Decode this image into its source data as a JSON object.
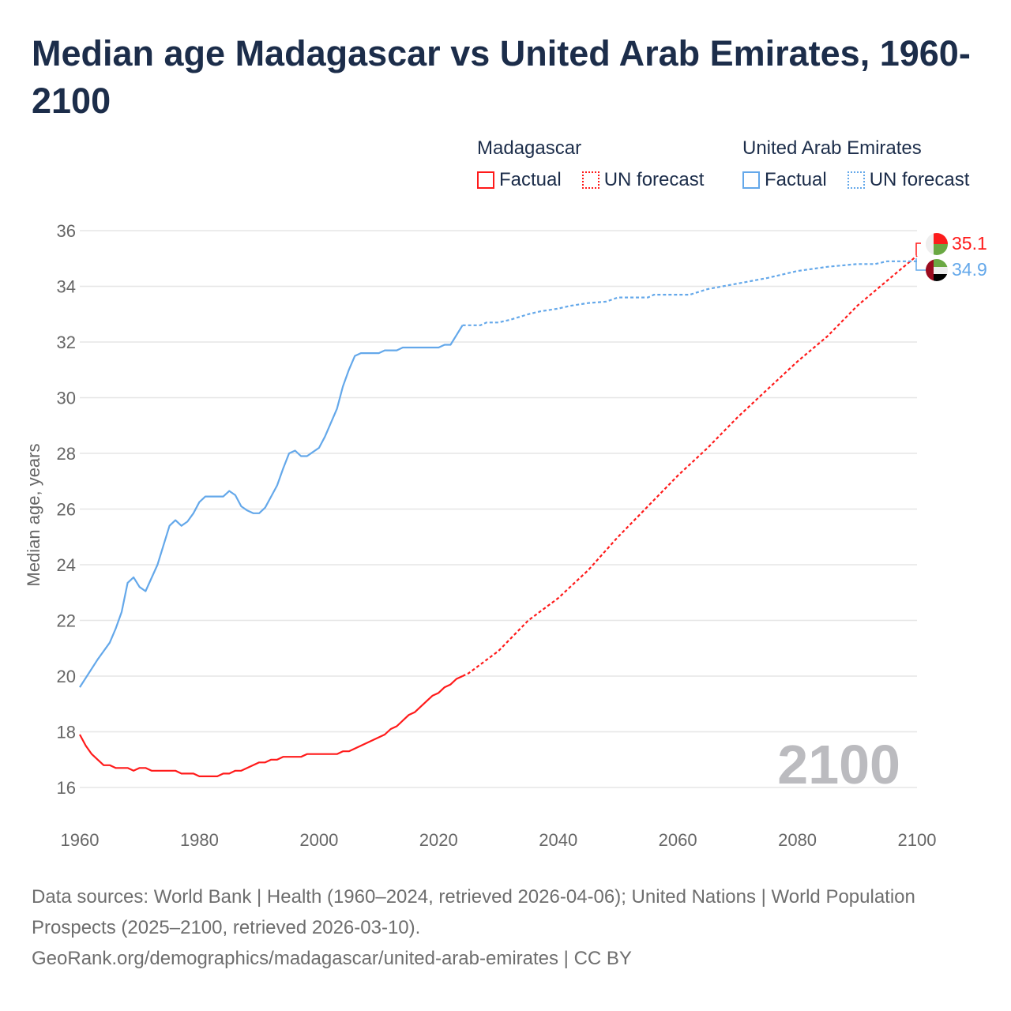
{
  "title": "Median age Madagascar vs United Arab Emirates, 1960-2100",
  "legend": [
    {
      "country": "Madagascar",
      "color": "#ff1a1a",
      "factual_label": "Factual",
      "forecast_label": "UN forecast"
    },
    {
      "country": "United Arab Emirates",
      "color": "#64a8ea",
      "factual_label": "Factual",
      "forecast_label": "UN forecast"
    }
  ],
  "year_watermark": "2100",
  "end_labels": {
    "madagascar": "35.1",
    "uae": "34.9"
  },
  "footer": {
    "line1": "Data sources: World Bank | Health (1960–2024, retrieved 2026-04-06); United Nations | World Population Prospects (2025–2100, retrieved 2026-03-10).",
    "line2": "GeoRank.org/demographics/madagascar/united-arab-emirates | CC BY"
  },
  "chart_data": {
    "type": "line",
    "title": "Median age Madagascar vs United Arab Emirates, 1960-2100",
    "xlabel": "",
    "ylabel": "Median age, years",
    "xlim": [
      1960,
      2100
    ],
    "ylim": [
      15,
      36.5
    ],
    "xticks": [
      1960,
      1980,
      2000,
      2020,
      2040,
      2060,
      2080,
      2100
    ],
    "yticks": [
      16,
      18,
      20,
      22,
      24,
      26,
      28,
      30,
      32,
      34,
      36
    ],
    "grid": true,
    "forecast_start": 2024,
    "series": [
      {
        "name": "Madagascar",
        "color": "#ff1a1a",
        "x": [
          1960,
          1961,
          1962,
          1963,
          1964,
          1965,
          1966,
          1968,
          1969,
          1970,
          1971,
          1972,
          1976,
          1977,
          1979,
          1980,
          1983,
          1984,
          1985,
          1986,
          1987,
          1988,
          1990,
          1991,
          1992,
          1993,
          1994,
          1997,
          1998,
          2003,
          2004,
          2005,
          2010,
          2011,
          2012,
          2013,
          2015,
          2016,
          2018,
          2019,
          2020,
          2021,
          2022,
          2023,
          2024,
          2025,
          2030,
          2035,
          2040,
          2045,
          2050,
          2055,
          2060,
          2065,
          2070,
          2075,
          2080,
          2085,
          2090,
          2095,
          2100
        ],
        "y": [
          17.9,
          17.5,
          17.2,
          17.0,
          16.8,
          16.8,
          16.7,
          16.7,
          16.6,
          16.7,
          16.7,
          16.6,
          16.6,
          16.5,
          16.5,
          16.4,
          16.4,
          16.5,
          16.5,
          16.6,
          16.6,
          16.7,
          16.9,
          16.9,
          17.0,
          17.0,
          17.1,
          17.1,
          17.2,
          17.2,
          17.3,
          17.3,
          17.8,
          17.9,
          18.1,
          18.2,
          18.6,
          18.7,
          19.1,
          19.3,
          19.4,
          19.6,
          19.7,
          19.9,
          20.0,
          20.1,
          20.9,
          22.0,
          22.8,
          23.8,
          25.0,
          26.1,
          27.2,
          28.2,
          29.3,
          30.3,
          31.3,
          32.2,
          33.3,
          34.2,
          35.1
        ]
      },
      {
        "name": "United Arab Emirates",
        "color": "#64a8ea",
        "x": [
          1960,
          1963,
          1965,
          1966,
          1967,
          1968,
          1969,
          1970,
          1971,
          1973,
          1975,
          1976,
          1977,
          1978,
          1979,
          1980,
          1981,
          1984,
          1985,
          1986,
          1987,
          1988,
          1989,
          1990,
          1991,
          1992,
          1993,
          1994,
          1995,
          1996,
          1997,
          1998,
          1999,
          2000,
          2001,
          2002,
          2003,
          2004,
          2005,
          2006,
          2007,
          2010,
          2011,
          2013,
          2014,
          2020,
          2021,
          2022,
          2023,
          2024,
          2027,
          2028,
          2030,
          2032,
          2035,
          2037,
          2040,
          2042,
          2045,
          2048,
          2050,
          2055,
          2056,
          2062,
          2065,
          2070,
          2075,
          2080,
          2085,
          2090,
          2093,
          2095,
          2100
        ],
        "y": [
          19.6,
          20.6,
          21.2,
          21.7,
          22.3,
          23.35,
          23.55,
          23.2,
          23.05,
          24.0,
          25.4,
          25.6,
          25.4,
          25.55,
          25.85,
          26.25,
          26.45,
          26.45,
          26.65,
          26.5,
          26.1,
          25.95,
          25.85,
          25.85,
          26.05,
          26.45,
          26.85,
          27.45,
          28.0,
          28.1,
          27.9,
          27.9,
          28.05,
          28.2,
          28.6,
          29.1,
          29.6,
          30.4,
          31.0,
          31.5,
          31.6,
          31.6,
          31.7,
          31.7,
          31.8,
          31.8,
          31.9,
          31.9,
          32.25,
          32.6,
          32.6,
          32.7,
          32.7,
          32.8,
          33.0,
          33.1,
          33.2,
          33.3,
          33.4,
          33.45,
          33.6,
          33.6,
          33.7,
          33.7,
          33.9,
          34.1,
          34.3,
          34.55,
          34.7,
          34.8,
          34.8,
          34.9,
          34.9
        ]
      }
    ]
  }
}
